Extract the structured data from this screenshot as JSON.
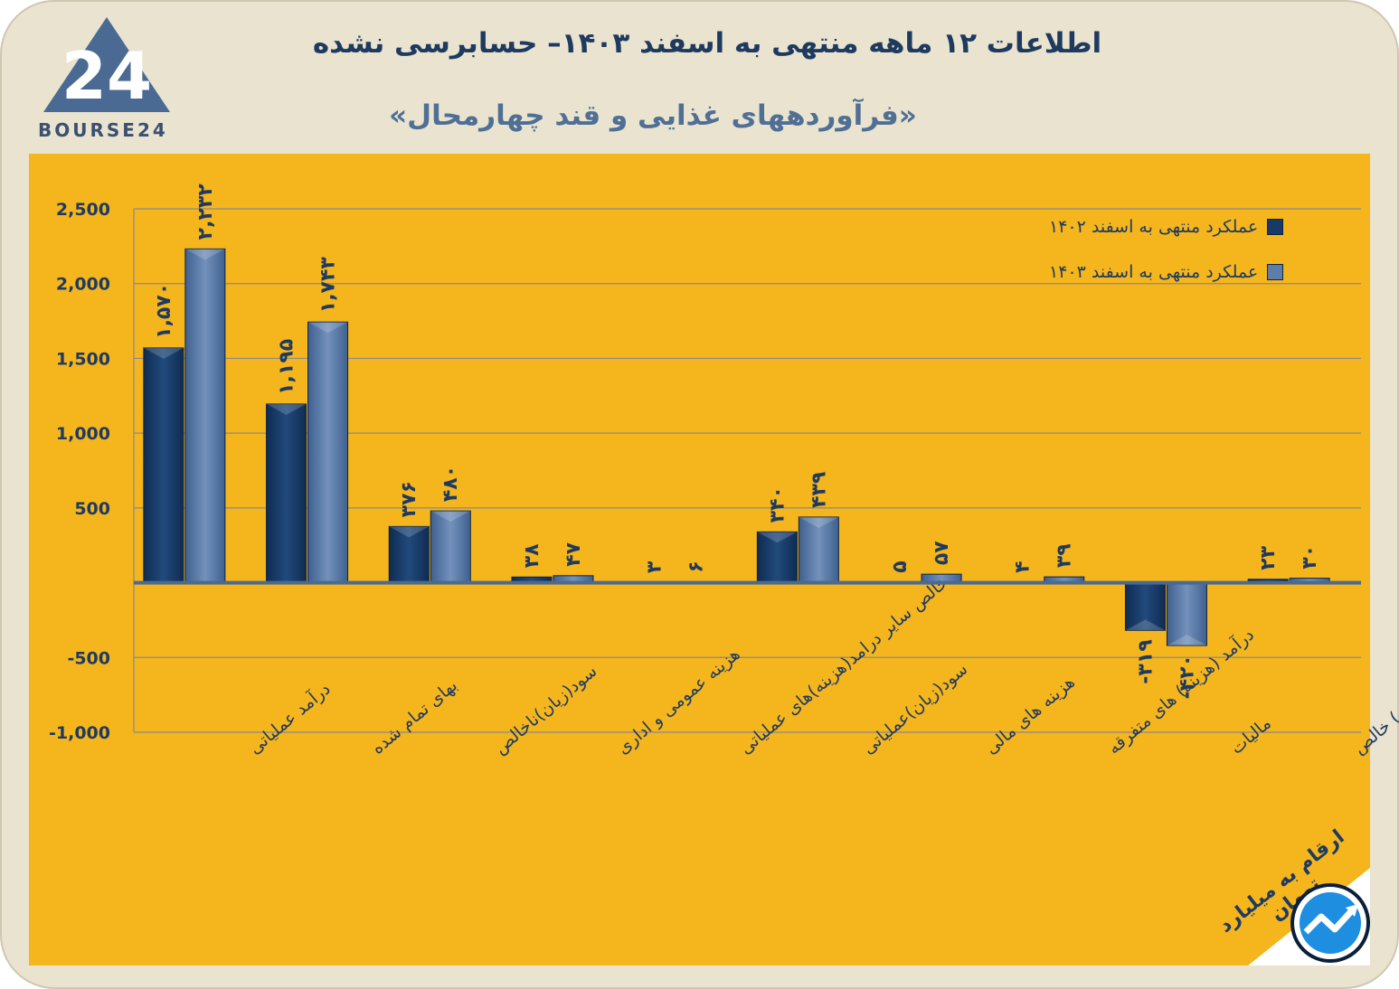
{
  "header": {
    "title": "اطلاعات ۱۲ ماهه منتهی به اسفند  ۱۴۰۳– حسابرسی نشده",
    "subtitle": "«فرآوردههای غذایی و قند چهارمحال»",
    "logo_text": "BOURSE24",
    "logo_number": "24"
  },
  "footer": {
    "unit_note": "ارقام به میلیارد تومان"
  },
  "colors": {
    "panel": "#f5b51d",
    "series_1402": "#173a66",
    "series_1403": "#5d7ea9",
    "text": "#1e3a5f"
  },
  "chart_data": {
    "type": "bar",
    "title": "",
    "xlabel": "",
    "ylabel": "",
    "ylim": [
      -1000,
      2500
    ],
    "y_ticks": [
      "2,500",
      "2,000",
      "1,500",
      "1,000",
      "500",
      "",
      "-500",
      "-1,000"
    ],
    "y_tick_values": [
      2500,
      2000,
      1500,
      1000,
      500,
      0,
      -500,
      -1000
    ],
    "categories": [
      "درآمد عملیاتی",
      "بهای تمام شده",
      "سود(زیان)ناخالص",
      "هزینه عمومی و اداری",
      "خالص سایر درامد(هزینه)های عملیاتی",
      "سود(زیان)عملیاتی",
      "هزینه های مالی",
      "درآمد (هزینه) های متفرقه",
      "مالیات",
      "سود(زیان) خالص"
    ],
    "series": [
      {
        "name": "عملکرد منتهی به اسفند ۱۴۰۲",
        "values": [
          1570,
          1195,
          376,
          38,
          3,
          340,
          5,
          4,
          -319,
          23
        ],
        "labels": [
          "۱,۵۷۰",
          "۱,۱۹۵",
          "۳۷۶",
          "۳۸",
          "۳",
          "۳۴۰",
          "۵",
          "۴",
          "-۳۱۹",
          "۲۳"
        ]
      },
      {
        "name": "عملکرد منتهی به اسفند ۱۴۰۳",
        "values": [
          2232,
          1743,
          480,
          47,
          6,
          439,
          57,
          39,
          -420,
          30
        ],
        "labels": [
          "۲,۲۳۲",
          "۱,۷۴۳",
          "۴۸۰",
          "۴۷",
          "۶",
          "۴۳۹",
          "۵۷",
          "۳۹",
          "-۴۲۰",
          "۳۰"
        ]
      }
    ],
    "legend_position": "top-right",
    "grid": true
  }
}
